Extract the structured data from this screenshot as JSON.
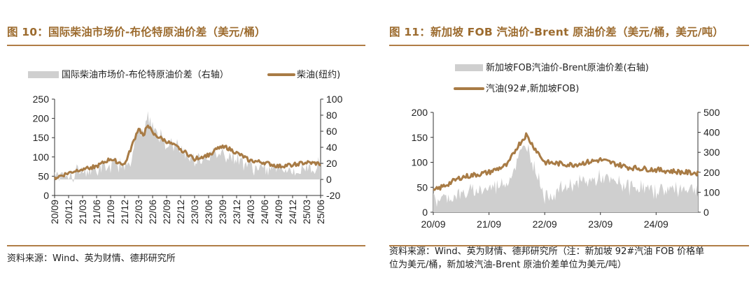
{
  "left": {
    "title": "图 10：国际柴油市场价-布伦特原油价差（美元/桶）",
    "source": "资料来源：Wind、英为财情、德邦研究所"
  },
  "right": {
    "title": "图 11：新加坡 FOB 汽油价-Brent 原油价差（美元/桶，美元/吨）",
    "source_line1": "资料来源：Wind、英为财情、德邦研究所（注：新加坡 92#汽油 FOB 价格单",
    "source_line2": "位为美元/桶，新加坡汽油-Brent 原油价差单位为美元/吨）"
  },
  "colors": {
    "line": "#a87b45",
    "area": "#cfcfcf",
    "accent": "#9c6b2e"
  },
  "chart_data": [
    {
      "type": "line",
      "left_axis_ylim": [
        0,
        250
      ],
      "left_axis_ticks": [
        "0",
        "50",
        "100",
        "150",
        "200",
        "250"
      ],
      "right_axis_ylim": [
        -20,
        100
      ],
      "right_axis_ticks": [
        "-20",
        "0",
        "20",
        "40",
        "60",
        "80",
        "100"
      ],
      "x_ticks": [
        "20/09",
        "20/12",
        "21/03",
        "21/06",
        "21/09",
        "21/12",
        "22/03",
        "22/06",
        "22/09",
        "22/12",
        "23/03",
        "23/06",
        "23/09",
        "23/12",
        "24/03",
        "24/06",
        "24/09",
        "24/12",
        "25/03",
        "25/06"
      ],
      "legend_position": "top",
      "series": [
        {
          "name": "国际柴油市场价-布伦特原油价差（右轴）",
          "type": "area",
          "axis": "right",
          "x": [
            "20/09",
            "20/12",
            "21/03",
            "21/06",
            "21/09",
            "21/12",
            "22/01",
            "22/03",
            "22/04",
            "22/05",
            "22/06",
            "22/09",
            "22/12",
            "23/03",
            "23/06",
            "23/09",
            "23/12",
            "24/03",
            "24/06",
            "24/09",
            "24/12",
            "25/03",
            "25/06"
          ],
          "values": [
            6,
            8,
            10,
            12,
            14,
            18,
            22,
            60,
            55,
            75,
            65,
            45,
            38,
            24,
            28,
            33,
            26,
            16,
            12,
            14,
            10,
            13,
            18
          ]
        },
        {
          "name": "柴油(纽约)",
          "type": "line",
          "axis": "left",
          "x": [
            "20/09",
            "20/12",
            "21/03",
            "21/06",
            "21/09",
            "21/12",
            "22/01",
            "22/03",
            "22/04",
            "22/05",
            "22/06",
            "22/09",
            "22/12",
            "23/03",
            "23/06",
            "23/09",
            "23/12",
            "24/03",
            "24/06",
            "24/09",
            "24/12",
            "25/03",
            "25/06"
          ],
          "values": [
            45,
            58,
            70,
            75,
            95,
            80,
            110,
            175,
            155,
            185,
            160,
            140,
            120,
            95,
            105,
            130,
            110,
            90,
            85,
            75,
            80,
            85,
            82
          ]
        }
      ]
    },
    {
      "type": "line",
      "left_axis_ylim": [
        0,
        200
      ],
      "left_axis_ticks": [
        "0",
        "50",
        "100",
        "150",
        "200"
      ],
      "right_axis_ylim": [
        0,
        500
      ],
      "right_axis_ticks": [
        "0",
        "100",
        "200",
        "300",
        "400",
        "500"
      ],
      "x_ticks": [
        "20/09",
        "21/09",
        "22/09",
        "23/09",
        "24/09"
      ],
      "legend_position": "top",
      "series": [
        {
          "name": "新加坡FOB汽油价-Brent原油价差(右轴)",
          "type": "area",
          "axis": "right",
          "x": [
            "20/09",
            "21/03",
            "21/09",
            "22/01",
            "22/03",
            "22/05",
            "22/06",
            "22/09",
            "23/03",
            "23/09",
            "24/03",
            "24/09",
            "25/03",
            "25/06"
          ],
          "values": [
            60,
            90,
            120,
            150,
            250,
            350,
            280,
            80,
            140,
            170,
            130,
            110,
            120,
            125
          ]
        },
        {
          "name": "汽油(92#,新加坡FOB)",
          "type": "line",
          "axis": "left",
          "x": [
            "20/09",
            "21/03",
            "21/09",
            "22/01",
            "22/03",
            "22/05",
            "22/06",
            "22/09",
            "23/03",
            "23/09",
            "24/03",
            "24/09",
            "25/03",
            "25/06"
          ],
          "values": [
            42,
            70,
            80,
            95,
            130,
            155,
            140,
            100,
            95,
            105,
            90,
            85,
            80,
            78
          ]
        }
      ]
    }
  ]
}
